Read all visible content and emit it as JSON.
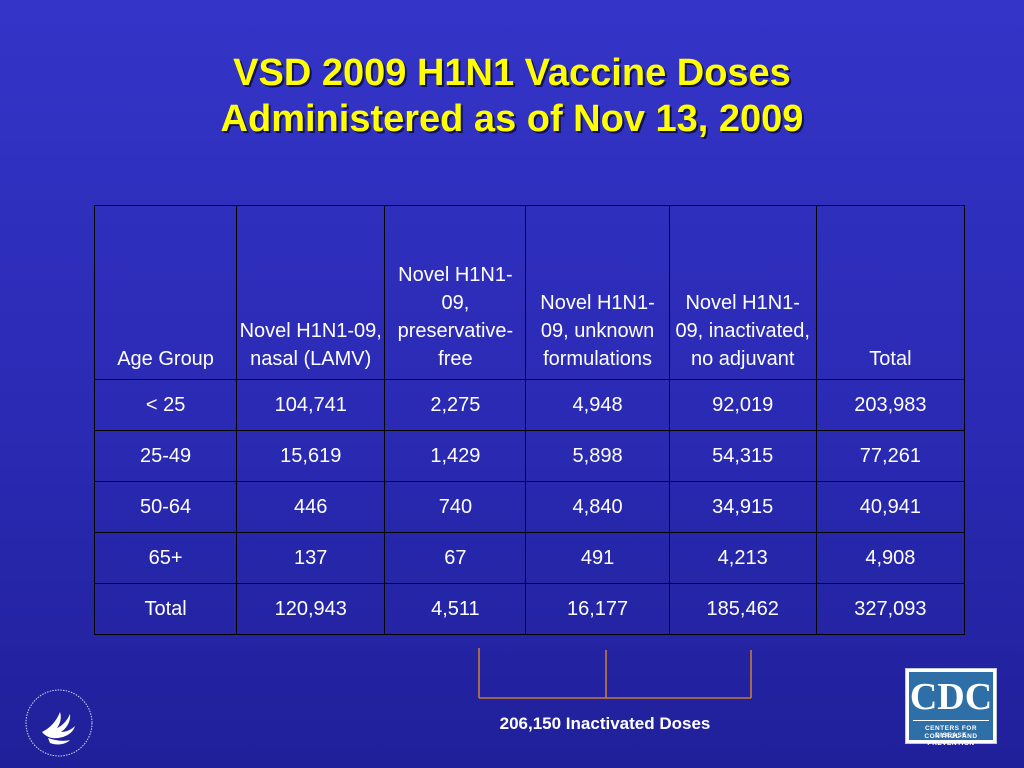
{
  "slide": {
    "title_line1": "VSD 2009 H1N1 Vaccine Doses",
    "title_line2": "Administered as of Nov 13, 2009",
    "colors": {
      "background": "#2a2ab4",
      "title": "#ffff00",
      "text": "#ffffff",
      "bracket": "#c8783c"
    }
  },
  "table": {
    "headers": [
      "Age Group",
      "Novel H1N1-09, nasal (LAMV)",
      "Novel H1N1-09, preservative-free",
      "Novel H1N1-09, unknown formulations",
      "Novel H1N1-09, inactivated, no adjuvant",
      "Total"
    ],
    "rows": [
      [
        "< 25",
        "104,741",
        "2,275",
        "4,948",
        "92,019",
        "203,983"
      ],
      [
        "25-49",
        "15,619",
        "1,429",
        "5,898",
        "54,315",
        "77,261"
      ],
      [
        "50-64",
        "446",
        "740",
        "4,840",
        "34,915",
        "40,941"
      ],
      [
        "65+",
        "137",
        "67",
        "491",
        "4,213",
        "4,908"
      ],
      [
        "Total",
        "120,943",
        "4,511",
        "16,177",
        "185,462",
        "327,093"
      ]
    ]
  },
  "annotation": {
    "inactivated_label": "206,150 Inactivated Doses"
  },
  "logos": {
    "cdc_text": "CDC",
    "cdc_sub_line1": "CENTERS FOR DISEASE",
    "cdc_sub_line2": "CONTROL AND PREVENTION",
    "hhs_icon": "hhs-eagle-seal-icon"
  }
}
